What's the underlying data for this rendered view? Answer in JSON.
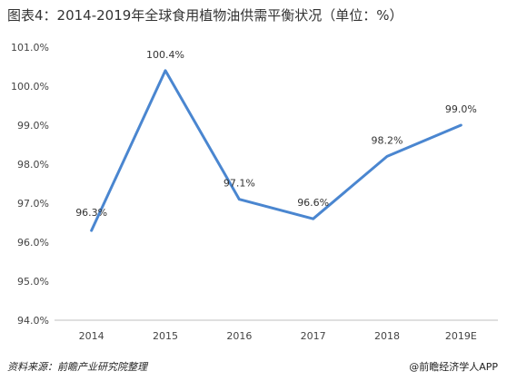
{
  "chart_data": {
    "type": "line",
    "title": "图表4：2014-2019年全球食用植物油供需平衡状况（单位：%）",
    "categories": [
      "2014",
      "2015",
      "2016",
      "2017",
      "2018",
      "2019E"
    ],
    "values": [
      96.3,
      100.4,
      97.1,
      96.6,
      98.2,
      99.0
    ],
    "data_labels": [
      "96.3%",
      "100.4%",
      "97.1%",
      "96.6%",
      "98.2%",
      "99.0%"
    ],
    "y_ticks": [
      "94.0%",
      "95.0%",
      "96.0%",
      "97.0%",
      "98.0%",
      "99.0%",
      "100.0%",
      "101.0%"
    ],
    "ylim": [
      94,
      101
    ],
    "xlabel": "",
    "ylabel": "",
    "grid": false,
    "line_color": "#4a86d0"
  },
  "footer": {
    "source": "资料来源：前瞻产业研究院整理",
    "credit": "@前瞻经济学人APP"
  }
}
